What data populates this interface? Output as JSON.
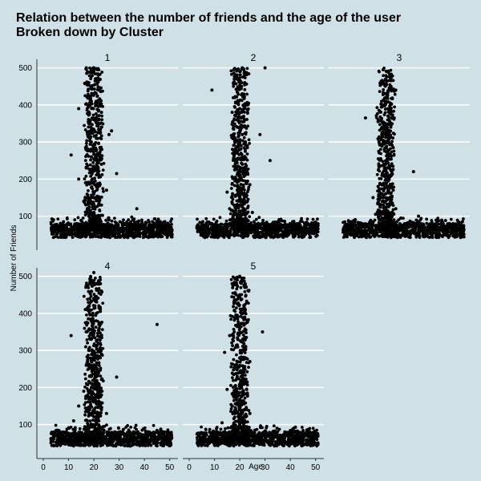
{
  "chart_data": {
    "type": "scatter",
    "title": "Relation between the number of friends and the age of the user",
    "subtitle": "Broken down by Cluster",
    "xlabel": "Age",
    "ylabel": "Number of Friends",
    "xlim": [
      0,
      52
    ],
    "ylim": [
      30,
      510
    ],
    "x_ticks": [
      0,
      10,
      20,
      30,
      40,
      50
    ],
    "y_ticks": [
      100,
      200,
      300,
      400,
      500
    ],
    "grid": "horizontal major lines, white",
    "background": "#cfe0e6",
    "point_color": "#000000",
    "panels": [
      {
        "name": "1",
        "points": [
          [
            17,
            500
          ],
          [
            19,
            495
          ],
          [
            20,
            500
          ],
          [
            21,
            470
          ],
          [
            18,
            460
          ],
          [
            22,
            440
          ],
          [
            20,
            430
          ],
          [
            19,
            410
          ],
          [
            21,
            400
          ],
          [
            23,
            380
          ],
          [
            20,
            360
          ],
          [
            18,
            350
          ],
          [
            22,
            330
          ],
          [
            21,
            310
          ],
          [
            19,
            300
          ],
          [
            20,
            285
          ],
          [
            27,
            330
          ],
          [
            26,
            320
          ],
          [
            22,
            270
          ],
          [
            19,
            260
          ],
          [
            21,
            250
          ],
          [
            23,
            240
          ],
          [
            17,
            230
          ],
          [
            20,
            225
          ],
          [
            29,
            215
          ],
          [
            22,
            205
          ],
          [
            14,
            200
          ],
          [
            18,
            190
          ],
          [
            21,
            180
          ],
          [
            25,
            170
          ],
          [
            20,
            160
          ],
          [
            19,
            150
          ],
          [
            16,
            140
          ],
          [
            23,
            130
          ],
          [
            20,
            125
          ],
          [
            11,
            265
          ],
          [
            14,
            390
          ],
          [
            37,
            120
          ],
          [
            8,
            85
          ],
          [
            26,
            90
          ],
          [
            20,
            110
          ],
          [
            18,
            100
          ],
          [
            22,
            95
          ],
          [
            19,
            90
          ],
          [
            21,
            85
          ],
          [
            17,
            80
          ],
          [
            24,
            75
          ],
          [
            15,
            72
          ],
          [
            28,
            70
          ],
          [
            12,
            68
          ],
          [
            33,
            65
          ],
          [
            38,
            62
          ],
          [
            45,
            60
          ],
          [
            50,
            58
          ],
          [
            5,
            70
          ],
          [
            10,
            60
          ],
          [
            30,
            55
          ],
          [
            42,
            50
          ],
          [
            48,
            65
          ],
          [
            35,
            58
          ]
        ]
      },
      {
        "name": "2",
        "points": [
          [
            21,
            500
          ],
          [
            30,
            500
          ],
          [
            20,
            490
          ],
          [
            19,
            470
          ],
          [
            22,
            460
          ],
          [
            9,
            440
          ],
          [
            21,
            430
          ],
          [
            18,
            420
          ],
          [
            23,
            400
          ],
          [
            20,
            390
          ],
          [
            17,
            380
          ],
          [
            22,
            360
          ],
          [
            19,
            340
          ],
          [
            21,
            320
          ],
          [
            28,
            320
          ],
          [
            20,
            300
          ],
          [
            23,
            285
          ],
          [
            19,
            270
          ],
          [
            32,
            250
          ],
          [
            21,
            240
          ],
          [
            18,
            225
          ],
          [
            22,
            210
          ],
          [
            20,
            200
          ],
          [
            24,
            185
          ],
          [
            19,
            170
          ],
          [
            21,
            160
          ],
          [
            15,
            165
          ],
          [
            17,
            150
          ],
          [
            23,
            140
          ],
          [
            20,
            130
          ],
          [
            16,
            120
          ],
          [
            25,
            110
          ],
          [
            20,
            105
          ],
          [
            19,
            95
          ],
          [
            22,
            90
          ],
          [
            18,
            85
          ],
          [
            26,
            80
          ],
          [
            21,
            75
          ],
          [
            14,
            72
          ],
          [
            30,
            70
          ],
          [
            11,
            68
          ],
          [
            36,
            66
          ],
          [
            44,
            64
          ],
          [
            49,
            62
          ],
          [
            6,
            60
          ],
          [
            33,
            58
          ],
          [
            40,
            55
          ],
          [
            47,
            56
          ],
          [
            27,
            60
          ],
          [
            12,
            55
          ]
        ]
      },
      {
        "name": "3",
        "points": [
          [
            19,
            495
          ],
          [
            21,
            490
          ],
          [
            20,
            470
          ],
          [
            18,
            460
          ],
          [
            22,
            450
          ],
          [
            24,
            440
          ],
          [
            20,
            420
          ],
          [
            19,
            400
          ],
          [
            21,
            390
          ],
          [
            12,
            365
          ],
          [
            17,
            355
          ],
          [
            22,
            340
          ],
          [
            20,
            320
          ],
          [
            19,
            300
          ],
          [
            23,
            285
          ],
          [
            21,
            270
          ],
          [
            18,
            255
          ],
          [
            20,
            240
          ],
          [
            22,
            225
          ],
          [
            31,
            220
          ],
          [
            19,
            210
          ],
          [
            21,
            195
          ],
          [
            17,
            180
          ],
          [
            23,
            170
          ],
          [
            20,
            160
          ],
          [
            15,
            150
          ],
          [
            22,
            140
          ],
          [
            19,
            130
          ],
          [
            24,
            120
          ],
          [
            21,
            110
          ],
          [
            16,
            105
          ],
          [
            20,
            100
          ],
          [
            26,
            95
          ],
          [
            33,
            100
          ],
          [
            18,
            90
          ],
          [
            22,
            85
          ],
          [
            28,
            80
          ],
          [
            13,
            78
          ],
          [
            35,
            72
          ],
          [
            40,
            70
          ],
          [
            46,
            68
          ],
          [
            50,
            65
          ],
          [
            5,
            60
          ],
          [
            9,
            62
          ],
          [
            30,
            58
          ],
          [
            38,
            55
          ],
          [
            44,
            52
          ],
          [
            48,
            60
          ],
          [
            25,
            60
          ],
          [
            11,
            55
          ]
        ]
      },
      {
        "name": "4",
        "points": [
          [
            20,
            510
          ],
          [
            19,
            490
          ],
          [
            21,
            480
          ],
          [
            17,
            475
          ],
          [
            22,
            465
          ],
          [
            23,
            460
          ],
          [
            20,
            440
          ],
          [
            18,
            420
          ],
          [
            21,
            400
          ],
          [
            19,
            385
          ],
          [
            22,
            370
          ],
          [
            45,
            370
          ],
          [
            20,
            350
          ],
          [
            11,
            340
          ],
          [
            19,
            330
          ],
          [
            21,
            310
          ],
          [
            18,
            300
          ],
          [
            23,
            290
          ],
          [
            20,
            275
          ],
          [
            17,
            260
          ],
          [
            22,
            245
          ],
          [
            19,
            230
          ],
          [
            29,
            228
          ],
          [
            21,
            215
          ],
          [
            20,
            200
          ],
          [
            16,
            190
          ],
          [
            23,
            180
          ],
          [
            19,
            170
          ],
          [
            22,
            160
          ],
          [
            14,
            150
          ],
          [
            20,
            140
          ],
          [
            25,
            130
          ],
          [
            18,
            125
          ],
          [
            21,
            115
          ],
          [
            12,
            110
          ],
          [
            19,
            100
          ],
          [
            22,
            95
          ],
          [
            17,
            90
          ],
          [
            24,
            85
          ],
          [
            20,
            80
          ],
          [
            15,
            75
          ],
          [
            28,
            72
          ],
          [
            10,
            70
          ],
          [
            33,
            68
          ],
          [
            38,
            66
          ],
          [
            43,
            64
          ],
          [
            48,
            62
          ],
          [
            3,
            62
          ],
          [
            7,
            55
          ],
          [
            36,
            58
          ]
        ]
      },
      {
        "name": "5",
        "points": [
          [
            20,
            500
          ],
          [
            21,
            495
          ],
          [
            19,
            490
          ],
          [
            17,
            480
          ],
          [
            22,
            470
          ],
          [
            20,
            450
          ],
          [
            18,
            430
          ],
          [
            21,
            410
          ],
          [
            19,
            395
          ],
          [
            23,
            380
          ],
          [
            20,
            360
          ],
          [
            29,
            350
          ],
          [
            16,
            340
          ],
          [
            22,
            330
          ],
          [
            19,
            315
          ],
          [
            21,
            300
          ],
          [
            14,
            295
          ],
          [
            20,
            280
          ],
          [
            24,
            270
          ],
          [
            18,
            260
          ],
          [
            21,
            245
          ],
          [
            19,
            230
          ],
          [
            22,
            220
          ],
          [
            20,
            205
          ],
          [
            15,
            195
          ],
          [
            23,
            185
          ],
          [
            19,
            175
          ],
          [
            21,
            160
          ],
          [
            17,
            150
          ],
          [
            20,
            140
          ],
          [
            24,
            130
          ],
          [
            18,
            120
          ],
          [
            21,
            110
          ],
          [
            13,
            105
          ],
          [
            20,
            100
          ],
          [
            22,
            95
          ],
          [
            19,
            90
          ],
          [
            26,
            85
          ],
          [
            16,
            80
          ],
          [
            41,
            88
          ],
          [
            31,
            75
          ],
          [
            11,
            72
          ],
          [
            36,
            70
          ],
          [
            44,
            68
          ],
          [
            49,
            66
          ],
          [
            5,
            55
          ],
          [
            9,
            60
          ],
          [
            28,
            62
          ],
          [
            40,
            58
          ],
          [
            47,
            56
          ]
        ]
      }
    ]
  }
}
